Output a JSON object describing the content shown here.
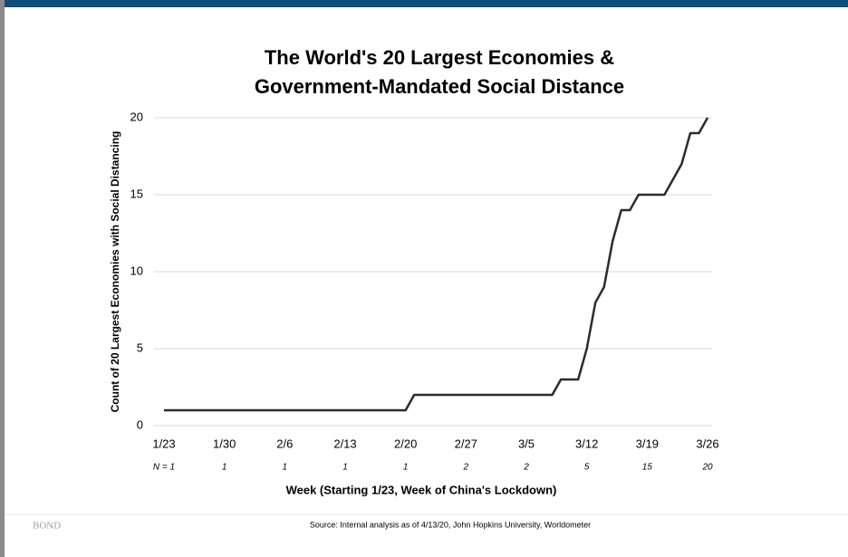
{
  "chart_data": {
    "type": "line",
    "title": [
      "The World's 20 Largest Economies &",
      "Government-Mandated Social Distance"
    ],
    "y_label": "Count of 20 Largest Economies with Social Distancing",
    "x_label": "Week (Starting 1/23, Week of China's Lockdown)",
    "categories": [
      "1/23",
      null,
      null,
      null,
      null,
      null,
      null,
      "1/30",
      null,
      null,
      null,
      null,
      null,
      null,
      "2/6",
      null,
      null,
      null,
      null,
      null,
      null,
      "2/13",
      null,
      null,
      null,
      null,
      null,
      null,
      "2/20",
      null,
      null,
      null,
      null,
      null,
      null,
      "2/27",
      null,
      null,
      null,
      null,
      null,
      null,
      "3/5",
      null,
      null,
      null,
      null,
      null,
      null,
      "3/12",
      null,
      null,
      null,
      null,
      null,
      null,
      "3/19",
      null,
      null,
      null,
      null,
      null,
      null,
      "3/26"
    ],
    "values": [
      1,
      1,
      1,
      1,
      1,
      1,
      1,
      1,
      1,
      1,
      1,
      1,
      1,
      1,
      1,
      1,
      1,
      1,
      1,
      1,
      1,
      1,
      1,
      1,
      1,
      1,
      1,
      1,
      1,
      2,
      2,
      2,
      2,
      2,
      2,
      2,
      2,
      2,
      2,
      2,
      2,
      2,
      2,
      2,
      2,
      2,
      3,
      3,
      3,
      5,
      8,
      9,
      12,
      14,
      14,
      15,
      15,
      15,
      15,
      16,
      17,
      19,
      19,
      20
    ],
    "n_labels": [
      "N = 1",
      "1",
      "1",
      "1",
      "1",
      "2",
      "2",
      "5",
      "15",
      "20"
    ],
    "color": "#2b2b33",
    "ylim": [
      0,
      20
    ],
    "yticks": [
      0,
      5,
      10,
      15,
      20
    ],
    "grid": true
  },
  "footer": {
    "brand": "BOND",
    "source": "Source: Internal analysis as of 4/13/20, John Hopkins University, Worldometer"
  }
}
